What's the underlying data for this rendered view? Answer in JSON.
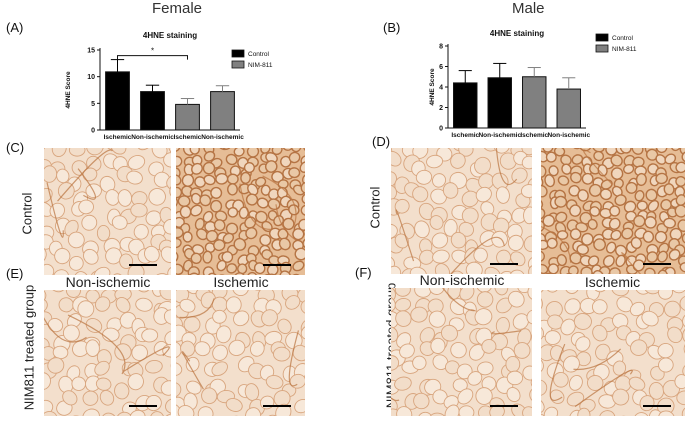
{
  "headers": {
    "female": "Female",
    "male": "Male"
  },
  "panel_labels": {
    "a": "(A)",
    "b": "(B)",
    "c": "(C)",
    "d": "(D)",
    "e": "(E)",
    "f": "(F)"
  },
  "row_labels": {
    "control": "Control",
    "nim": "NIM811 treated group"
  },
  "column_titles": {
    "left_non_ischemic": "Non-ischemic",
    "left_ischemic": "Ischemic",
    "right_non_ischemic": "Non-ischemic",
    "right_ischemic": "Ischemic"
  },
  "colors": {
    "control_bar": "#000000",
    "nim_bar": "#808080",
    "tissue_light": "#f3dfcc",
    "tissue_dark": "#e6bd96",
    "stain_line": "#b9733f"
  },
  "chart_data": [
    {
      "type": "bar",
      "title": "4HNE staining",
      "ylabel": "4HNE Score",
      "categories": [
        "Ischemic",
        "Non-ischemic",
        "Ischemic",
        "Non-ischemic"
      ],
      "groups": [
        "Control",
        "Control",
        "NIM-811",
        "NIM-811"
      ],
      "values": [
        10.9,
        7.2,
        4.8,
        7.2
      ],
      "errors": [
        2.3,
        1.2,
        1.1,
        1.1
      ],
      "ylim": [
        0,
        15
      ],
      "yticks": [
        "0",
        "5",
        "10",
        "15"
      ],
      "legend": [
        {
          "name": "Control",
          "color": "#000000"
        },
        {
          "name": "NIM-811",
          "color": "#808080"
        }
      ],
      "legend_position": "right",
      "annotation": "*"
    },
    {
      "type": "bar",
      "title": "4HNE staining",
      "ylabel": "4HNE Score",
      "categories": [
        "Ischemic",
        "Non-ischemic",
        "Ischemic",
        "Non-ischemic"
      ],
      "groups": [
        "Control",
        "Control",
        "NIM-811",
        "NIM-811"
      ],
      "values": [
        4.4,
        4.9,
        5.0,
        3.8
      ],
      "errors": [
        1.2,
        1.4,
        0.9,
        1.1
      ],
      "ylim": [
        0,
        8
      ],
      "yticks": [
        "0",
        "2",
        "4",
        "6",
        "8"
      ],
      "legend": [
        {
          "name": "Control",
          "color": "#000000"
        },
        {
          "name": "NIM-811",
          "color": "#808080"
        }
      ],
      "legend_position": "right"
    }
  ]
}
